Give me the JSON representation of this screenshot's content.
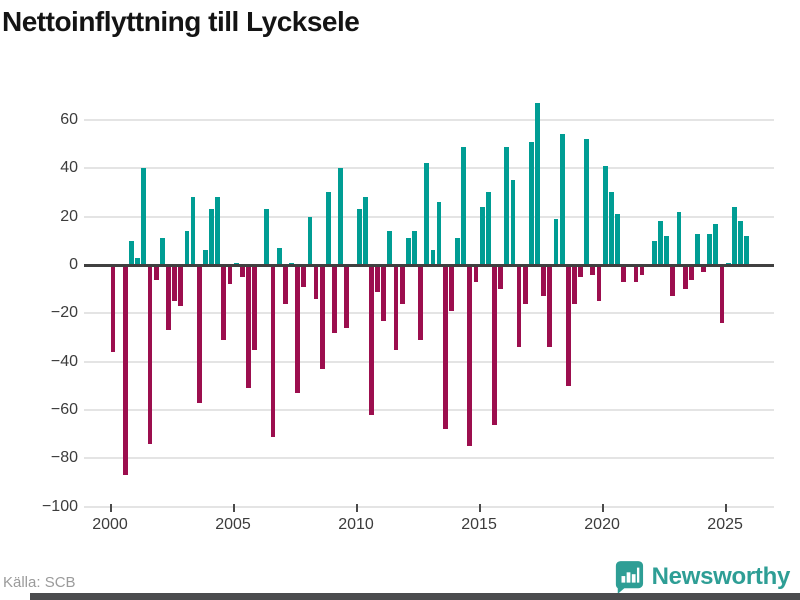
{
  "header": {
    "title": "Nettoinflyttning till Lycksele"
  },
  "footer": {
    "source": "Källa: SCB",
    "brand": "Newsworthy"
  },
  "colors": {
    "positive": "#009D94",
    "negative": "#9C0E4E",
    "grid": "#e4e4e4",
    "zero_line": "#404040",
    "brand_teal": "#2e9e95",
    "bottom_bar": "#4b4c4e"
  },
  "chart_data": {
    "type": "bar",
    "title": "Nettoinflyttning till Lycksele",
    "frequency": "quarterly",
    "x_start": "2000Q1",
    "x_end": "2025Q4",
    "ylim": [
      -100,
      67
    ],
    "yticks": [
      60,
      40,
      20,
      0,
      -20,
      -40,
      -60,
      -80,
      -100
    ],
    "xticks": [
      2000,
      2005,
      2010,
      2015,
      2020,
      2025
    ],
    "grid": true,
    "legend": false,
    "years": [
      {
        "year": 2000,
        "quarters": [
          -36,
          0,
          -87,
          10
        ]
      },
      {
        "year": 2001,
        "quarters": [
          3,
          40,
          -74,
          -6
        ]
      },
      {
        "year": 2002,
        "quarters": [
          11,
          -27,
          -15,
          -17
        ]
      },
      {
        "year": 2003,
        "quarters": [
          14,
          28,
          -57,
          6
        ]
      },
      {
        "year": 2004,
        "quarters": [
          23,
          28,
          -31,
          -8
        ]
      },
      {
        "year": 2005,
        "quarters": [
          1,
          -5,
          -51,
          -35
        ]
      },
      {
        "year": 2006,
        "quarters": [
          0,
          23,
          -71,
          7
        ]
      },
      {
        "year": 2007,
        "quarters": [
          -16,
          1,
          -53,
          -9
        ]
      },
      {
        "year": 2008,
        "quarters": [
          20,
          -14,
          -43,
          30
        ]
      },
      {
        "year": 2009,
        "quarters": [
          -28,
          40,
          -26,
          0
        ]
      },
      {
        "year": 2010,
        "quarters": [
          23,
          28,
          -62,
          -11
        ]
      },
      {
        "year": 2011,
        "quarters": [
          -23,
          14,
          -35,
          -16
        ]
      },
      {
        "year": 2012,
        "quarters": [
          11,
          14,
          -31,
          42
        ]
      },
      {
        "year": 2013,
        "quarters": [
          6,
          26,
          -68,
          -19
        ]
      },
      {
        "year": 2014,
        "quarters": [
          11,
          49,
          -75,
          -7
        ]
      },
      {
        "year": 2015,
        "quarters": [
          24,
          30,
          -66,
          -10
        ]
      },
      {
        "year": 2016,
        "quarters": [
          49,
          35,
          -34,
          -16
        ]
      },
      {
        "year": 2017,
        "quarters": [
          51,
          67,
          -13,
          -34
        ]
      },
      {
        "year": 2018,
        "quarters": [
          19,
          54,
          -50,
          -16
        ]
      },
      {
        "year": 2019,
        "quarters": [
          -5,
          52,
          -4,
          -15
        ]
      },
      {
        "year": 2020,
        "quarters": [
          41,
          30,
          21,
          -7
        ]
      },
      {
        "year": 2021,
        "quarters": [
          0,
          -7,
          -4,
          0
        ]
      },
      {
        "year": 2022,
        "quarters": [
          10,
          18,
          12,
          -13
        ]
      },
      {
        "year": 2023,
        "quarters": [
          22,
          -10,
          -6,
          13
        ]
      },
      {
        "year": 2024,
        "quarters": [
          -3,
          13,
          17,
          -24
        ]
      },
      {
        "year": 2025,
        "quarters": [
          1,
          24,
          18,
          12
        ]
      }
    ]
  }
}
